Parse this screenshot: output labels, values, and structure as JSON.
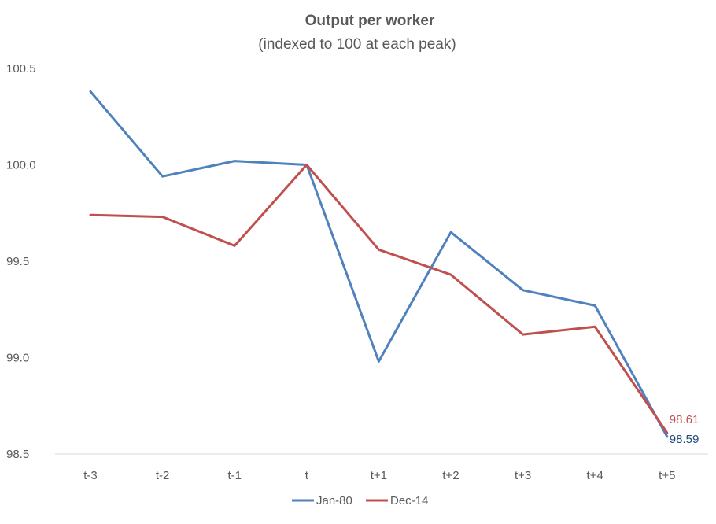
{
  "chart_data": {
    "type": "line",
    "title": "Output per worker",
    "subtitle": "(indexed to 100 at each peak)",
    "categories": [
      "t-3",
      "t-2",
      "t-1",
      "t",
      "t+1",
      "t+2",
      "t+3",
      "t+4",
      "t+5"
    ],
    "ylim": [
      98.5,
      100.5
    ],
    "yticks": [
      "98.5",
      "99.0",
      "99.5",
      "100.0",
      "100.5"
    ],
    "grid": false,
    "legend_position": "bottom",
    "series": [
      {
        "name": "Jan-80",
        "color": "#4f81bd",
        "values": [
          100.38,
          99.94,
          100.02,
          100.0,
          98.98,
          99.65,
          99.35,
          99.27,
          98.59
        ],
        "end_label": "98.59",
        "end_label_color": "#1f497d"
      },
      {
        "name": "Dec-14",
        "color": "#c0504d",
        "values": [
          99.74,
          99.73,
          99.58,
          100.0,
          99.56,
          99.43,
          99.12,
          99.16,
          98.61
        ],
        "end_label": "98.61",
        "end_label_color": "#c0504d"
      }
    ]
  }
}
